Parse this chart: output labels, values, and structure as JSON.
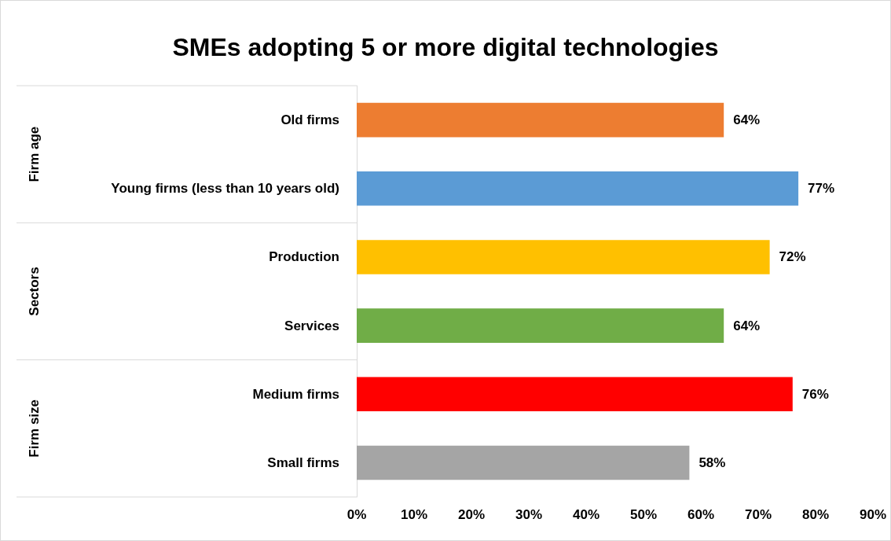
{
  "chart_data": {
    "type": "bar",
    "orientation": "horizontal",
    "title": "SMEs adopting 5 or more digital technologies",
    "categories": [
      "Old firms",
      "Young firms (less than 10 years old)",
      "Production",
      "Services",
      "Medium firms",
      "Small firms"
    ],
    "values": [
      64,
      77,
      72,
      64,
      76,
      58
    ],
    "colors": [
      "#ed7d31",
      "#5b9bd5",
      "#ffc000",
      "#70ad47",
      "#ff0000",
      "#a5a5a5"
    ],
    "value_labels": [
      "64%",
      "77%",
      "72%",
      "64%",
      "76%",
      "58%"
    ],
    "xlim": [
      0,
      90
    ],
    "xticks": [
      {
        "value": 0,
        "label": "0%"
      },
      {
        "value": 10,
        "label": "10%"
      },
      {
        "value": 20,
        "label": "20%"
      },
      {
        "value": 30,
        "label": "30%"
      },
      {
        "value": 40,
        "label": "40%"
      },
      {
        "value": 50,
        "label": "50%"
      },
      {
        "value": 60,
        "label": "60%"
      },
      {
        "value": 70,
        "label": "70%"
      },
      {
        "value": 80,
        "label": "80%"
      },
      {
        "value": 90,
        "label": "90%"
      }
    ],
    "annotations": [
      "Firm age",
      "Sectors",
      "Firm size"
    ],
    "grid": false
  }
}
